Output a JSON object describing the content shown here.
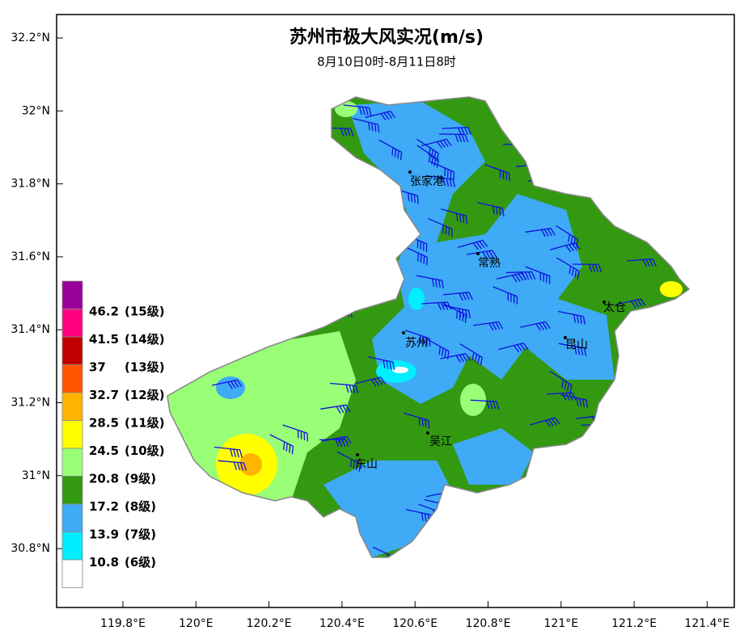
{
  "header": {
    "title": "苏州市极大风实况(m/s)",
    "subtitle": "8月10日0时-8月11日8时"
  },
  "axes": {
    "lat_labels": [
      "32.2°N",
      "32°N",
      "31.8°N",
      "31.6°N",
      "31.4°N",
      "31.2°N",
      "31°N",
      "30.8°N"
    ],
    "lon_labels": [
      "119.8°E",
      "120°E",
      "120.2°E",
      "120.4°E",
      "120.6°E",
      "120.8°E",
      "121°E",
      "121.2°E",
      "121.4°E"
    ]
  },
  "cities": [
    "张家港",
    "常熟",
    "太仓",
    "苏州",
    "昆山",
    "吴江",
    "东山"
  ],
  "legend": {
    "colors": [
      "#990099",
      "#ff0080",
      "#c00000",
      "#ff5500",
      "#ffb400",
      "#ffff00",
      "#99ff77",
      "#339911",
      "#3faaf5",
      "#00eeff",
      "#ffffff"
    ],
    "items": [
      {
        "value": "46.2",
        "grade": "(15级)"
      },
      {
        "value": "41.5",
        "grade": "(14级)"
      },
      {
        "value": "37",
        "grade": "(13级)"
      },
      {
        "value": "32.7",
        "grade": "(12级)"
      },
      {
        "value": "28.5",
        "grade": "(11级)"
      },
      {
        "value": "24.5",
        "grade": "(10级)"
      },
      {
        "value": "20.8",
        "grade": "(9级)"
      },
      {
        "value": "17.2",
        "grade": "(8级)"
      },
      {
        "value": "13.9",
        "grade": "(7级)"
      },
      {
        "value": "10.8",
        "grade": "(6级)"
      }
    ]
  }
}
